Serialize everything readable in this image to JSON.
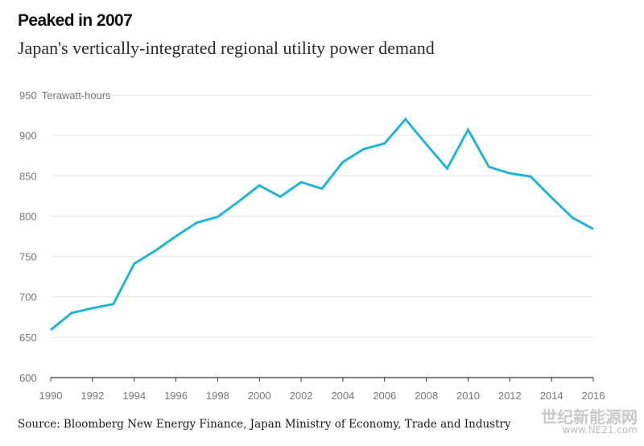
{
  "header": {
    "title": "Peaked in 2007",
    "subtitle": "Japan's vertically-integrated regional utility power demand"
  },
  "footer": {
    "source": "Source: Bloomberg New Energy Finance, Japan Ministry of Economy, Trade and Industry"
  },
  "watermark": {
    "text": "世纪新能源网",
    "url": "www.NE21.com"
  },
  "colors": {
    "line": "#1fb5d8",
    "grid": "#e6e6e6",
    "axis": "#333333",
    "tick_label": "#777777"
  },
  "chart_data": {
    "type": "line",
    "title": "Peaked in 2007",
    "subtitle": "Japan's vertically-integrated regional utility power demand",
    "ylabel": "Terawatt-hours",
    "xlim": [
      1990,
      2016
    ],
    "ylim": [
      600,
      950
    ],
    "grid": true,
    "x_ticks": [
      1990,
      1992,
      1994,
      1996,
      1998,
      2000,
      2002,
      2004,
      2006,
      2008,
      2010,
      2012,
      2014,
      2016
    ],
    "y_ticks": [
      600,
      650,
      700,
      750,
      800,
      850,
      900,
      950
    ],
    "series": [
      {
        "x": [
          1990,
          1991,
          1992,
          1993,
          1994,
          1995,
          1996,
          1997,
          1998,
          1999,
          2000,
          2001,
          2002,
          2003,
          2004,
          2005,
          2006,
          2007,
          2008,
          2009,
          2010,
          2011,
          2012,
          2013,
          2014,
          2015,
          2016
        ],
        "values": [
          659,
          680,
          686,
          691,
          741,
          757,
          775,
          792,
          799,
          818,
          838,
          824,
          842,
          834,
          867,
          883,
          890,
          920,
          889,
          859,
          907,
          861,
          853,
          849,
          823,
          798,
          784
        ]
      }
    ]
  }
}
